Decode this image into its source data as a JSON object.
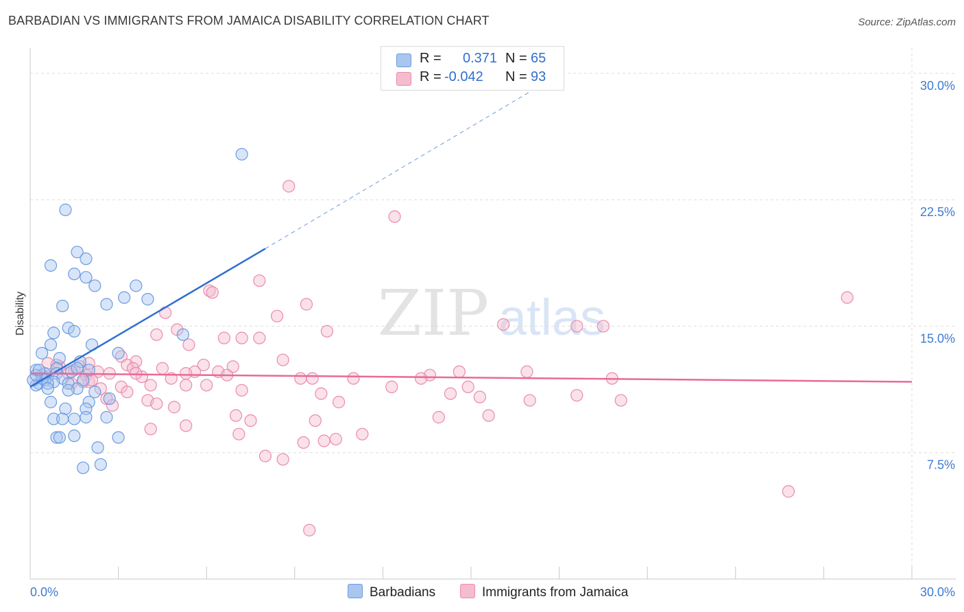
{
  "title": "BARBADIAN VS IMMIGRANTS FROM JAMAICA DISABILITY CORRELATION CHART",
  "source": "Source: ZipAtlas.com",
  "watermark": {
    "zip": "ZIP",
    "atlas": "atlas"
  },
  "legend": {
    "r_label": "R =",
    "n_label": "N =",
    "series1": {
      "r": "0.371",
      "n": "65"
    },
    "series2": {
      "r": "-0.042",
      "n": "93"
    }
  },
  "bottom_legend": {
    "series1": "Barbadians",
    "series2": "Immigrants from Jamaica"
  },
  "colors": {
    "blue_fill": "#a9c6ef",
    "blue_stroke": "#6b9be0",
    "blue_line": "#2f6fcf",
    "pink_fill": "#f5bcd0",
    "pink_stroke": "#e98bab",
    "pink_line": "#e8699a",
    "tick_text": "#3d7bd0",
    "grid": "#dcdcdc"
  },
  "chart_data": {
    "type": "scatter",
    "title": "BARBADIAN VS IMMIGRANTS FROM JAMAICA DISABILITY CORRELATION CHART",
    "xlabel": "",
    "ylabel": "Disability",
    "xlim": [
      0,
      30
    ],
    "ylim": [
      0,
      31.5
    ],
    "x_tick_labels": [
      "0.0%",
      "30.0%"
    ],
    "y_ticks": [
      7.5,
      15.0,
      22.5,
      30.0
    ],
    "y_tick_labels": [
      "7.5%",
      "15.0%",
      "22.5%",
      "30.0%"
    ],
    "grid": true,
    "series": [
      {
        "name": "Barbadians",
        "r": 0.371,
        "n": 65,
        "trend": {
          "x0": 0.0,
          "y0": 11.4,
          "x1": 8.0,
          "y1": 19.6,
          "dashed_to_x": 17.0,
          "dashed_to_y": 28.9
        },
        "points": [
          [
            7.2,
            25.2
          ],
          [
            1.2,
            21.9
          ],
          [
            1.6,
            19.4
          ],
          [
            0.7,
            18.6
          ],
          [
            1.5,
            18.1
          ],
          [
            1.9,
            19.0
          ],
          [
            1.9,
            17.9
          ],
          [
            2.2,
            17.4
          ],
          [
            3.6,
            17.4
          ],
          [
            3.2,
            16.7
          ],
          [
            4.0,
            16.6
          ],
          [
            1.1,
            16.2
          ],
          [
            2.6,
            16.3
          ],
          [
            0.8,
            14.6
          ],
          [
            1.3,
            14.9
          ],
          [
            1.5,
            14.7
          ],
          [
            5.2,
            14.5
          ],
          [
            0.7,
            13.9
          ],
          [
            2.1,
            13.9
          ],
          [
            0.4,
            13.4
          ],
          [
            1.0,
            13.1
          ],
          [
            3.0,
            13.4
          ],
          [
            1.7,
            12.9
          ],
          [
            0.2,
            12.4
          ],
          [
            0.9,
            12.5
          ],
          [
            0.4,
            12.1
          ],
          [
            1.4,
            12.3
          ],
          [
            2.0,
            12.4
          ],
          [
            0.6,
            12.0
          ],
          [
            0.9,
            12.2
          ],
          [
            1.1,
            11.9
          ],
          [
            0.3,
            11.6
          ],
          [
            0.5,
            11.8
          ],
          [
            1.8,
            11.8
          ],
          [
            0.8,
            11.7
          ],
          [
            0.2,
            11.5
          ],
          [
            0.1,
            11.8
          ],
          [
            0.4,
            11.9
          ],
          [
            0.5,
            12.2
          ],
          [
            0.2,
            12.1
          ],
          [
            0.6,
            11.6
          ],
          [
            1.3,
            11.6
          ],
          [
            1.6,
            11.3
          ],
          [
            0.6,
            11.3
          ],
          [
            2.2,
            11.1
          ],
          [
            2.7,
            10.7
          ],
          [
            0.7,
            10.5
          ],
          [
            2.0,
            10.5
          ],
          [
            1.2,
            10.1
          ],
          [
            1.9,
            10.1
          ],
          [
            1.9,
            9.6
          ],
          [
            0.8,
            9.5
          ],
          [
            1.1,
            9.5
          ],
          [
            2.6,
            9.6
          ],
          [
            1.5,
            9.5
          ],
          [
            0.9,
            8.4
          ],
          [
            1.0,
            8.4
          ],
          [
            1.5,
            8.5
          ],
          [
            3.0,
            8.4
          ],
          [
            2.3,
            7.8
          ],
          [
            2.4,
            6.8
          ],
          [
            1.8,
            6.6
          ],
          [
            1.3,
            11.2
          ],
          [
            1.6,
            12.5
          ],
          [
            0.3,
            12.4
          ]
        ]
      },
      {
        "name": "Immigrants from Jamaica",
        "r": -0.042,
        "n": 93,
        "trend": {
          "x0": 0.0,
          "y0": 12.2,
          "x1": 30.0,
          "y1": 11.7
        },
        "points": [
          [
            8.8,
            23.3
          ],
          [
            12.4,
            21.5
          ],
          [
            7.8,
            17.7
          ],
          [
            6.1,
            17.1
          ],
          [
            6.2,
            17.0
          ],
          [
            27.8,
            16.7
          ],
          [
            9.4,
            16.3
          ],
          [
            4.6,
            15.8
          ],
          [
            8.4,
            15.6
          ],
          [
            16.1,
            15.1
          ],
          [
            18.6,
            15.0
          ],
          [
            19.5,
            15.0
          ],
          [
            4.3,
            14.5
          ],
          [
            5.0,
            14.8
          ],
          [
            6.6,
            14.3
          ],
          [
            7.2,
            14.3
          ],
          [
            7.8,
            14.3
          ],
          [
            10.1,
            14.7
          ],
          [
            5.4,
            13.9
          ],
          [
            3.1,
            13.2
          ],
          [
            3.6,
            12.9
          ],
          [
            8.6,
            13.0
          ],
          [
            2.0,
            12.8
          ],
          [
            3.3,
            12.7
          ],
          [
            5.9,
            12.7
          ],
          [
            0.6,
            12.8
          ],
          [
            1.0,
            12.6
          ],
          [
            1.5,
            12.4
          ],
          [
            2.3,
            12.3
          ],
          [
            3.5,
            12.5
          ],
          [
            4.5,
            12.5
          ],
          [
            5.6,
            12.3
          ],
          [
            6.4,
            12.3
          ],
          [
            13.6,
            12.1
          ],
          [
            14.6,
            12.3
          ],
          [
            16.9,
            12.3
          ],
          [
            1.9,
            12.1
          ],
          [
            3.8,
            12.0
          ],
          [
            4.8,
            11.9
          ],
          [
            5.3,
            12.2
          ],
          [
            6.7,
            12.1
          ],
          [
            9.2,
            11.9
          ],
          [
            13.3,
            11.9
          ],
          [
            19.8,
            11.9
          ],
          [
            2.7,
            12.2
          ],
          [
            1.4,
            11.6
          ],
          [
            2.0,
            11.7
          ],
          [
            3.1,
            11.4
          ],
          [
            4.1,
            11.5
          ],
          [
            5.3,
            11.5
          ],
          [
            6.0,
            11.5
          ],
          [
            7.2,
            11.2
          ],
          [
            9.9,
            11.0
          ],
          [
            9.6,
            11.9
          ],
          [
            12.3,
            11.4
          ],
          [
            14.3,
            11.0
          ],
          [
            14.9,
            11.4
          ],
          [
            2.4,
            11.3
          ],
          [
            1.8,
            11.7
          ],
          [
            4.0,
            10.6
          ],
          [
            2.6,
            10.7
          ],
          [
            4.3,
            10.4
          ],
          [
            4.9,
            10.2
          ],
          [
            10.5,
            10.5
          ],
          [
            15.3,
            10.8
          ],
          [
            17.0,
            10.6
          ],
          [
            18.6,
            10.9
          ],
          [
            20.1,
            10.6
          ],
          [
            2.8,
            10.3
          ],
          [
            7.0,
            9.7
          ],
          [
            7.5,
            9.4
          ],
          [
            9.7,
            9.4
          ],
          [
            13.9,
            9.6
          ],
          [
            15.6,
            9.7
          ],
          [
            4.1,
            8.9
          ],
          [
            5.3,
            9.1
          ],
          [
            7.1,
            8.6
          ],
          [
            11.3,
            8.6
          ],
          [
            9.3,
            8.1
          ],
          [
            10.0,
            8.2
          ],
          [
            10.4,
            8.3
          ],
          [
            8.0,
            7.3
          ],
          [
            8.6,
            7.1
          ],
          [
            25.8,
            5.2
          ],
          [
            9.5,
            2.9
          ],
          [
            3.3,
            11.1
          ],
          [
            1.7,
            12.6
          ],
          [
            0.9,
            12.7
          ],
          [
            2.1,
            11.8
          ],
          [
            11.0,
            11.9
          ],
          [
            6.9,
            12.6
          ],
          [
            3.6,
            12.2
          ],
          [
            1.3,
            12.2
          ]
        ]
      }
    ]
  }
}
